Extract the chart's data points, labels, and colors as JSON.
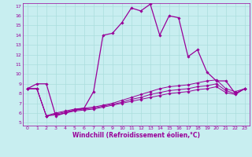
{
  "xlabel": "Windchill (Refroidissement éolien,°C)",
  "bg_color": "#c8eef0",
  "line_color": "#990099",
  "grid_color": "#aadddd",
  "text_color": "#990099",
  "xlim": [
    -0.5,
    23.5
  ],
  "ylim": [
    4.7,
    17.3
  ],
  "yticks": [
    5,
    6,
    7,
    8,
    9,
    10,
    11,
    12,
    13,
    14,
    15,
    16,
    17
  ],
  "xticks": [
    0,
    1,
    2,
    3,
    4,
    5,
    6,
    7,
    8,
    9,
    10,
    11,
    12,
    13,
    14,
    15,
    16,
    17,
    18,
    19,
    20,
    21,
    22,
    23
  ],
  "line1_x": [
    0,
    1,
    2,
    3,
    4,
    5,
    6,
    7,
    8,
    9,
    10,
    11,
    12,
    13,
    14,
    15,
    16,
    17,
    18,
    19,
    20,
    21,
    22,
    23
  ],
  "line1_y": [
    8.5,
    9.0,
    9.0,
    5.7,
    6.0,
    6.3,
    6.5,
    8.2,
    14.0,
    14.2,
    15.3,
    16.8,
    16.5,
    17.2,
    14.0,
    16.0,
    15.8,
    11.8,
    12.5,
    10.2,
    9.3,
    9.3,
    8.0,
    8.5
  ],
  "line2_x": [
    0,
    1,
    2,
    3,
    4,
    5,
    6,
    7,
    8,
    9,
    10,
    11,
    12,
    13,
    14,
    15,
    16,
    17,
    18,
    19,
    20,
    21,
    22,
    23
  ],
  "line2_y": [
    8.5,
    8.5,
    5.7,
    6.0,
    6.2,
    6.4,
    6.5,
    6.6,
    6.8,
    7.0,
    7.3,
    7.6,
    7.9,
    8.2,
    8.5,
    8.7,
    8.8,
    8.9,
    9.1,
    9.3,
    9.4,
    8.5,
    8.2,
    8.5
  ],
  "line3_x": [
    0,
    1,
    2,
    3,
    4,
    5,
    6,
    7,
    8,
    9,
    10,
    11,
    12,
    13,
    14,
    15,
    16,
    17,
    18,
    19,
    20,
    21,
    22,
    23
  ],
  "line3_y": [
    8.5,
    8.5,
    5.7,
    5.9,
    6.1,
    6.3,
    6.4,
    6.5,
    6.7,
    6.9,
    7.1,
    7.4,
    7.6,
    7.9,
    8.1,
    8.3,
    8.4,
    8.5,
    8.7,
    8.8,
    9.0,
    8.3,
    8.0,
    8.5
  ],
  "line4_x": [
    0,
    1,
    2,
    3,
    4,
    5,
    6,
    7,
    8,
    9,
    10,
    11,
    12,
    13,
    14,
    15,
    16,
    17,
    18,
    19,
    20,
    21,
    22,
    23
  ],
  "line4_y": [
    8.5,
    8.5,
    5.7,
    5.8,
    6.0,
    6.2,
    6.3,
    6.4,
    6.6,
    6.8,
    7.0,
    7.2,
    7.4,
    7.6,
    7.8,
    8.0,
    8.1,
    8.2,
    8.4,
    8.5,
    8.7,
    8.1,
    7.9,
    8.5
  ]
}
